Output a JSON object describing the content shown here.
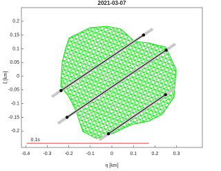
{
  "chart_data": {
    "type": "chords",
    "title": "2021-03-07",
    "x_label": "η [km]",
    "y_label": "ξ [km]",
    "xlim": [
      -0.42,
      0.42
    ],
    "ylim": [
      -0.26,
      0.25
    ],
    "xticks": [
      -0.4,
      -0.3,
      -0.2,
      -0.1,
      0,
      0.1,
      0.2,
      0.3
    ],
    "yticks": [
      -0.2,
      -0.15,
      -0.1,
      -0.05,
      0,
      0.05,
      0.1,
      0.15,
      0.2
    ],
    "chord_color": "#000000",
    "extension_color": "#c8c8c8",
    "shape_color": "#00e600",
    "series": [
      {
        "x": [
          -0.236,
          0.147
        ],
        "values": [
          -0.0525,
          0.15
        ]
      },
      {
        "x": [
          -0.208,
          0.252
        ],
        "values": [
          -0.15,
          0.095
        ]
      },
      {
        "x": [
          -0.016,
          0.249
        ],
        "values": [
          -0.21,
          -0.0675
        ]
      }
    ],
    "scale_bar": {
      "label": "0.1s",
      "x": [
        -0.396,
        0.172
      ],
      "y": -0.245,
      "color": "#ff4040"
    }
  }
}
